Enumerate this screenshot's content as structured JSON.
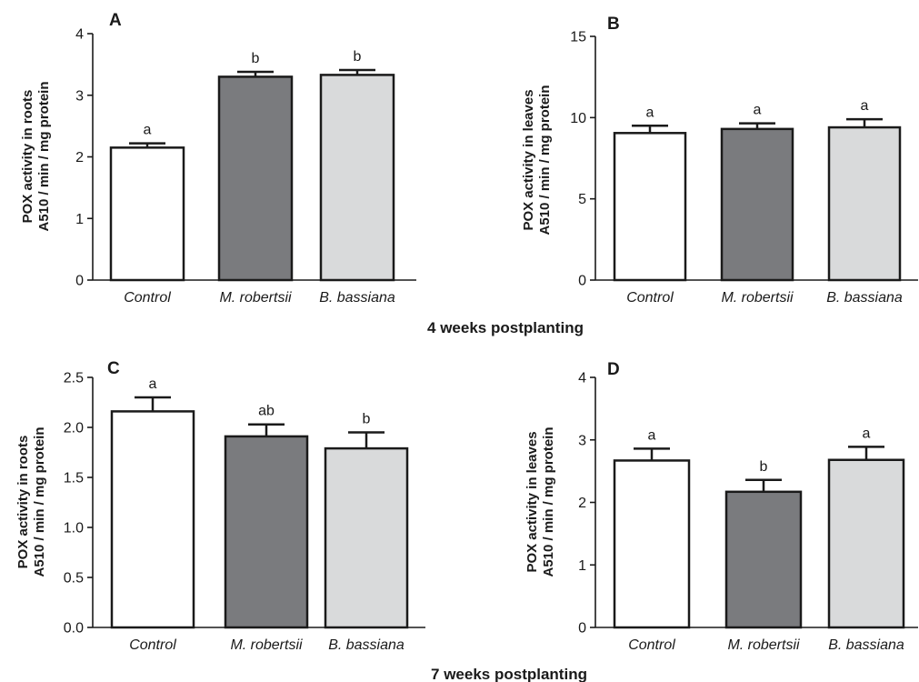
{
  "colors": {
    "control": "#ffffff",
    "m_robertsii": "#7a7b7e",
    "b_bassiana": "#d9dadb",
    "stroke": "#1a1a1a"
  },
  "captions": [
    "4 weeks postplanting",
    "7 weeks postplanting"
  ],
  "chart_data": [
    {
      "type": "bar",
      "panel": "A",
      "ylabel": [
        "POX activity in roots",
        "A510 / min / mg protein"
      ],
      "categories": [
        "Control",
        "M. robertsii",
        "B. bassiana"
      ],
      "values": [
        2.15,
        3.3,
        3.33
      ],
      "errors": [
        0.07,
        0.08,
        0.08
      ],
      "significance": [
        "a",
        "b",
        "b"
      ],
      "ylim": [
        0,
        4
      ],
      "yticks": [
        0,
        1,
        2,
        3,
        4
      ],
      "ytick_labels": [
        "0",
        "1",
        "2",
        "3",
        "4"
      ]
    },
    {
      "type": "bar",
      "panel": "B",
      "ylabel": [
        "POX activity in leaves",
        "A510 / min / mg protein"
      ],
      "categories": [
        "Control",
        "M. robertsii",
        "B. bassiana"
      ],
      "values": [
        9.05,
        9.3,
        9.4
      ],
      "errors": [
        0.45,
        0.35,
        0.5
      ],
      "significance": [
        "a",
        "a",
        "a"
      ],
      "ylim": [
        0,
        15
      ],
      "yticks": [
        0,
        5,
        10,
        15
      ],
      "ytick_labels": [
        "0",
        "5",
        "10",
        "15"
      ]
    },
    {
      "type": "bar",
      "panel": "C",
      "ylabel": [
        "POX activity in roots",
        "A510 / min / mg protein"
      ],
      "categories": [
        "Control",
        "M. robertsii",
        "B. bassiana"
      ],
      "values": [
        2.16,
        1.91,
        1.79
      ],
      "errors": [
        0.14,
        0.12,
        0.16
      ],
      "significance": [
        "a",
        "ab",
        "b"
      ],
      "ylim": [
        0,
        2.5
      ],
      "yticks": [
        0,
        0.5,
        1,
        1.5,
        2,
        2.5
      ],
      "ytick_labels": [
        "0.0",
        "0.5",
        "1.0",
        "1.5",
        "2.0",
        "2.5"
      ]
    },
    {
      "type": "bar",
      "panel": "D",
      "ylabel": [
        "POX activity in leaves",
        "A510 / min / mg protein"
      ],
      "categories": [
        "Control",
        "M. robertsii",
        "B. bassiana"
      ],
      "values": [
        2.67,
        2.17,
        2.68
      ],
      "errors": [
        0.19,
        0.19,
        0.21
      ],
      "significance": [
        "a",
        "b",
        "a"
      ],
      "ylim": [
        0,
        4
      ],
      "yticks": [
        0,
        1,
        2,
        3,
        4
      ],
      "ytick_labels": [
        "0",
        "1",
        "2",
        "3",
        "4"
      ]
    }
  ]
}
